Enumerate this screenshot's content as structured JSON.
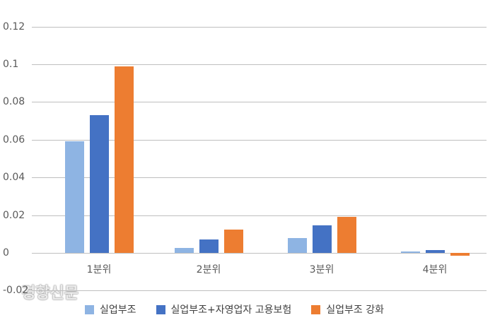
{
  "chart_data": {
    "type": "bar",
    "title": "",
    "xlabel": "",
    "ylabel": "",
    "categories": [
      "1분위",
      "2분위",
      "3분위",
      "4분위"
    ],
    "series": [
      {
        "name": "실업부조",
        "color": "#8eb4e3",
        "values": [
          0.059,
          0.0027,
          0.008,
          0.0008
        ]
      },
      {
        "name": "실업부조+자영업자 고용보험",
        "color": "#4472c4",
        "values": [
          0.073,
          0.007,
          0.0145,
          0.0015
        ]
      },
      {
        "name": "실업부조 강화",
        "color": "#ed7d31",
        "values": [
          0.099,
          0.0125,
          0.019,
          -0.0015
        ]
      }
    ],
    "ylim": [
      -0.02,
      0.12
    ],
    "yticks": [
      "0.12",
      "0.1",
      "0.08",
      "0.06",
      "0.04",
      "0.02",
      "0",
      "-0.02"
    ],
    "ytick_values": [
      0.12,
      0.1,
      0.08,
      0.06,
      0.04,
      0.02,
      0,
      -0.02
    ],
    "grid": true,
    "legend_position": "bottom"
  },
  "watermark": "경향신문"
}
